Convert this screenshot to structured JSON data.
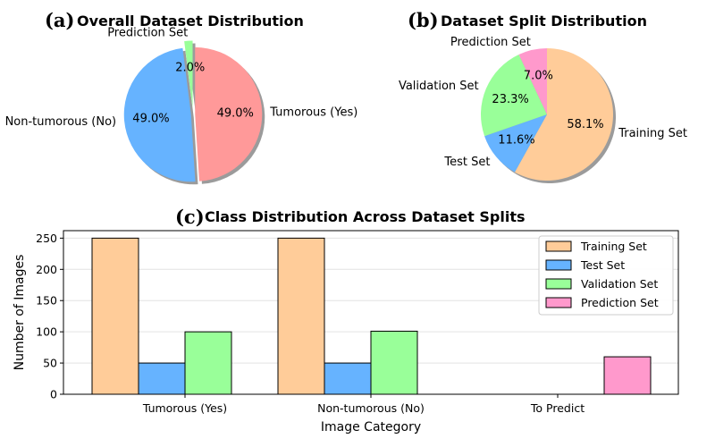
{
  "colors": {
    "training": "#ffcc99",
    "test": "#66b3ff",
    "validation": "#99ff99",
    "prediction": "#ff99cc",
    "tumorous": "#ff9999",
    "nontumorous": "#66b3ff",
    "edge": "#000000"
  },
  "chart_data": [
    {
      "id": "a",
      "type": "pie",
      "panel_letter": "(a)",
      "title": "Overall Dataset Distribution",
      "labels": [
        "Tumorous (Yes)",
        "Non-tumorous (No)",
        "Prediction Set"
      ],
      "values": [
        49.0,
        49.0,
        2.0
      ],
      "value_labels": [
        "49.0%",
        "49.0%",
        "2.0%"
      ],
      "colors": [
        "#ff9999",
        "#66b3ff",
        "#99ff99"
      ],
      "shadow": true
    },
    {
      "id": "b",
      "type": "pie",
      "panel_letter": "(b)",
      "title": "Dataset Split Distribution",
      "labels": [
        "Training Set",
        "Test Set",
        "Validation Set",
        "Prediction Set"
      ],
      "values": [
        58.1,
        11.6,
        23.3,
        7.0
      ],
      "value_labels": [
        "58.1%",
        "11.6%",
        "23.3%",
        "7.0%"
      ],
      "colors": [
        "#ffcc99",
        "#66b3ff",
        "#99ff99",
        "#ff99cc"
      ],
      "shadow": true
    },
    {
      "id": "c",
      "type": "bar",
      "panel_letter": "(c)",
      "title": "Class Distribution Across Dataset Splits",
      "categories": [
        "Tumorous (Yes)",
        "Non-tumorous (No)",
        "To Predict"
      ],
      "series": [
        {
          "name": "Training Set",
          "values": [
            250,
            250,
            0
          ],
          "color": "#ffcc99"
        },
        {
          "name": "Test Set",
          "values": [
            50,
            50,
            0
          ],
          "color": "#66b3ff"
        },
        {
          "name": "Validation Set",
          "values": [
            100,
            101,
            0
          ],
          "color": "#99ff99"
        },
        {
          "name": "Prediction Set",
          "values": [
            0,
            0,
            60
          ],
          "color": "#ff99cc"
        }
      ],
      "xlabel": "Image Category",
      "ylabel": "Number of Images",
      "ylim": [
        0,
        262
      ],
      "yticks": [
        0,
        50,
        100,
        150,
        200,
        250
      ],
      "grid": "y",
      "legend_position": "top-right"
    }
  ]
}
